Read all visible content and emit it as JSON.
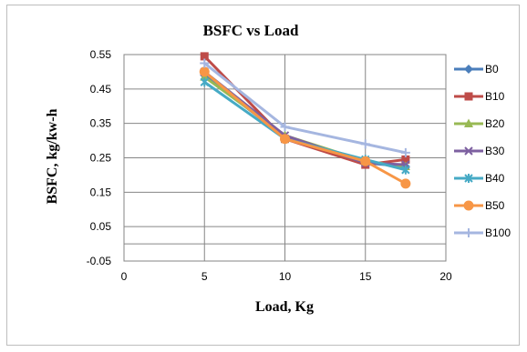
{
  "chart_data": {
    "type": "line",
    "title": "BSFC vs Load",
    "xlabel": "Load, Kg",
    "ylabel": "BSFC, kg/kw-h",
    "xlim": [
      0,
      20
    ],
    "ylim": [
      -0.05,
      0.55
    ],
    "xticks": [
      "0",
      "5",
      "10",
      "15",
      "20"
    ],
    "yticks": [
      "0.55",
      "0.45",
      "0.35",
      "0.25",
      "0.15",
      "0.05",
      "-0.05"
    ],
    "grid": "x-and-y",
    "legend_position": "right",
    "x": [
      5,
      10,
      15,
      17.5
    ],
    "series": [
      {
        "name": "B0",
        "values": [
          0.49,
          0.31,
          0.235,
          0.225
        ],
        "color": "#4a7ebb",
        "marker": "diamond"
      },
      {
        "name": "B10",
        "values": [
          0.545,
          0.305,
          0.23,
          0.245
        ],
        "color": "#be4b48",
        "marker": "square"
      },
      {
        "name": "B20",
        "values": [
          0.485,
          0.315,
          0.24,
          0.225
        ],
        "color": "#98b954",
        "marker": "triangle"
      },
      {
        "name": "B30",
        "values": [
          0.5,
          0.315,
          0.235,
          0.23
        ],
        "color": "#7d60a0",
        "marker": "x"
      },
      {
        "name": "B40",
        "values": [
          0.47,
          0.305,
          0.245,
          0.215
        ],
        "color": "#46aac5",
        "marker": "star"
      },
      {
        "name": "B50",
        "values": [
          0.5,
          0.305,
          0.24,
          0.175
        ],
        "color": "#f79646",
        "marker": "circle"
      },
      {
        "name": "B100",
        "values": [
          0.525,
          0.34,
          0.29,
          0.265
        ],
        "color": "#a5b6e0",
        "marker": "plus"
      }
    ]
  }
}
